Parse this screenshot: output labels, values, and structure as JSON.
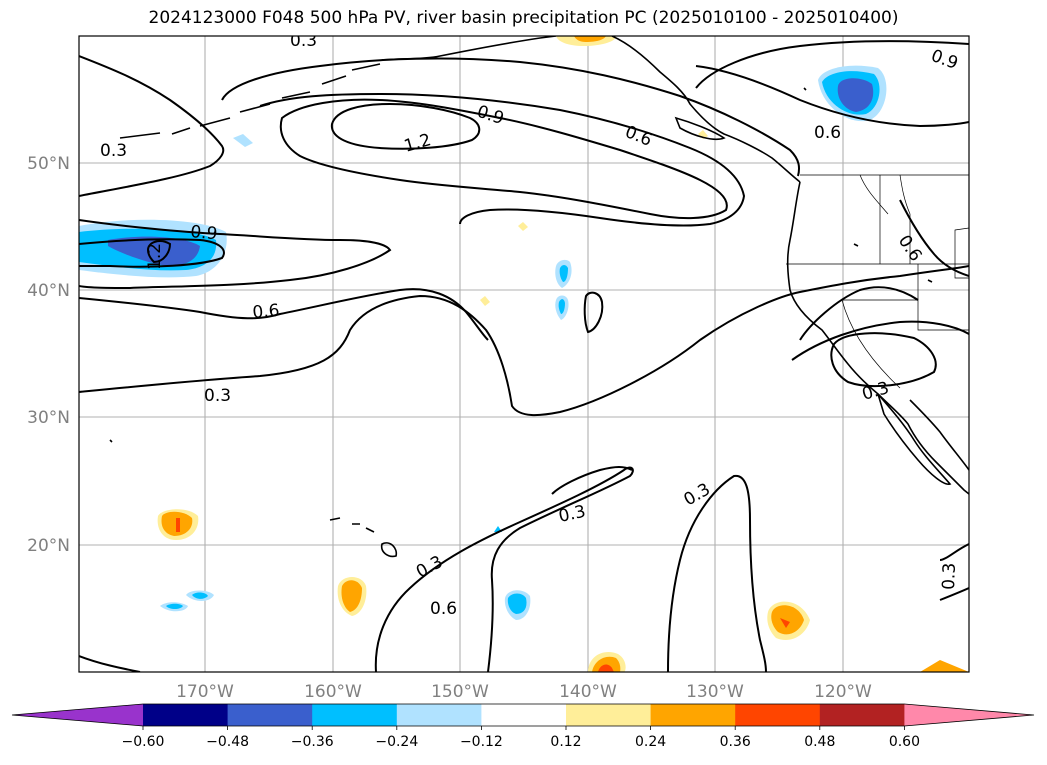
{
  "title": "2024123000 F048 500 hPa PV, river basin precipitation PC (2025010100 - 2025010400)",
  "map": {
    "lat_labels": [
      "50°N",
      "40°N",
      "30°N",
      "20°N"
    ],
    "lon_labels": [
      "170°W",
      "160°W",
      "150°W",
      "140°W",
      "130°W",
      "120°W"
    ],
    "pv_labels": [
      "0.3",
      "0.3",
      "0.3",
      "0.3",
      "0.3",
      "0.3",
      "0.3",
      "0.3",
      "0.6",
      "0.6",
      "0.6",
      "0.6",
      "0.6",
      "0.9",
      "0.9",
      "0.9",
      "1.2",
      "1.2"
    ]
  },
  "colorbar": {
    "colors": [
      "#9933cc",
      "#000088",
      "#3a5fcd",
      "#00bfff",
      "#b0e2ff",
      "#ffffff",
      "#ffee99",
      "#ffa500",
      "#ff4500",
      "#b22222",
      "#ff88aa"
    ],
    "tick_labels": [
      "−0.60",
      "−0.48",
      "−0.36",
      "−0.24",
      "−0.12",
      "0.12",
      "0.24",
      "0.36",
      "0.48",
      "0.60"
    ]
  }
}
